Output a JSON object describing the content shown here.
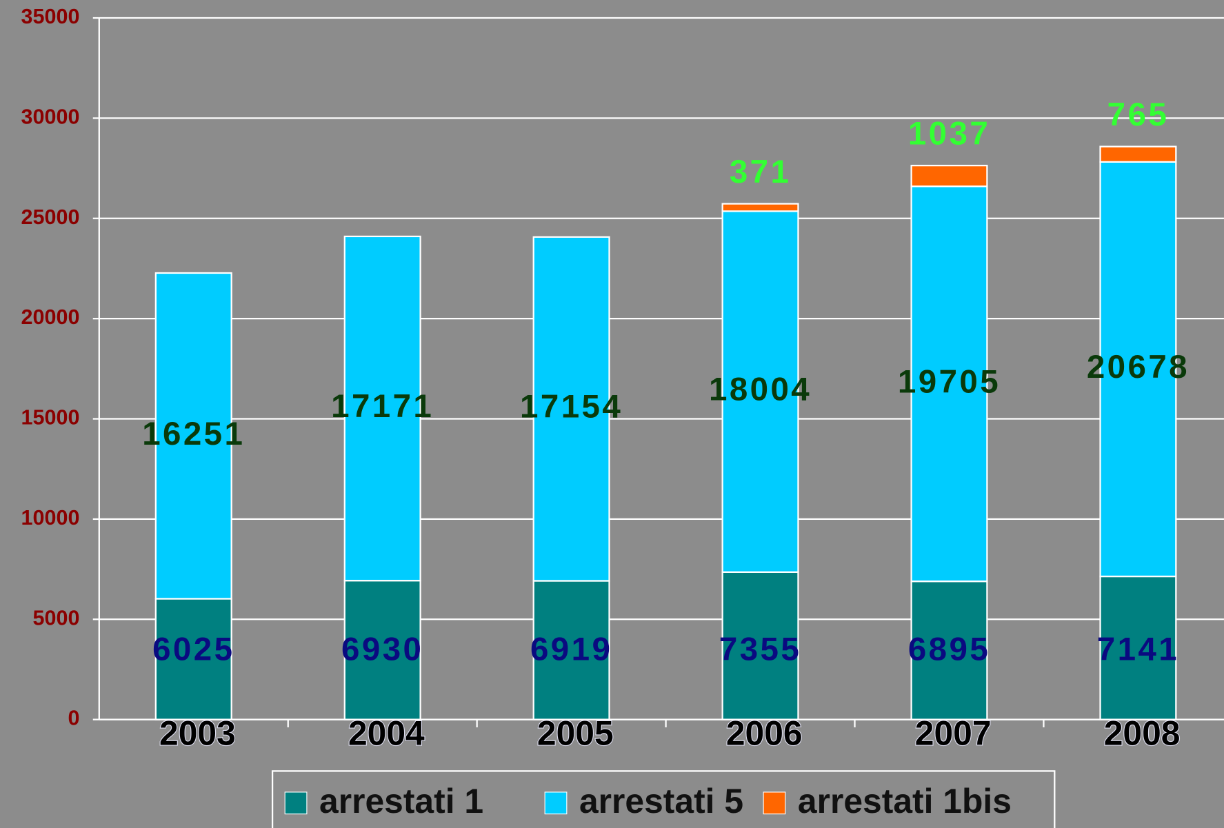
{
  "chart_data": {
    "type": "stacked_bar",
    "categories": [
      "2003",
      "2004",
      "2005",
      "2006",
      "2007",
      "2008"
    ],
    "series": [
      {
        "name": "arrestati 1",
        "color": "#008080",
        "label_color": "#0a0a80",
        "values": [
          6025,
          6930,
          6919,
          7355,
          6895,
          7141
        ]
      },
      {
        "name": "arrestati 5",
        "color": "#00ccff",
        "label_color": "#0a3a0a",
        "values": [
          16251,
          17171,
          17154,
          18004,
          19705,
          20678
        ]
      },
      {
        "name": "arrestati 1bis",
        "color": "#ff6600",
        "label_color": "#33ff33",
        "values": [
          null,
          null,
          null,
          371,
          1037,
          765
        ]
      }
    ],
    "ylim": [
      0,
      35000
    ],
    "yticks": [
      0,
      5000,
      10000,
      15000,
      20000,
      25000,
      30000,
      35000
    ],
    "grid": true,
    "legend": "bottom"
  }
}
